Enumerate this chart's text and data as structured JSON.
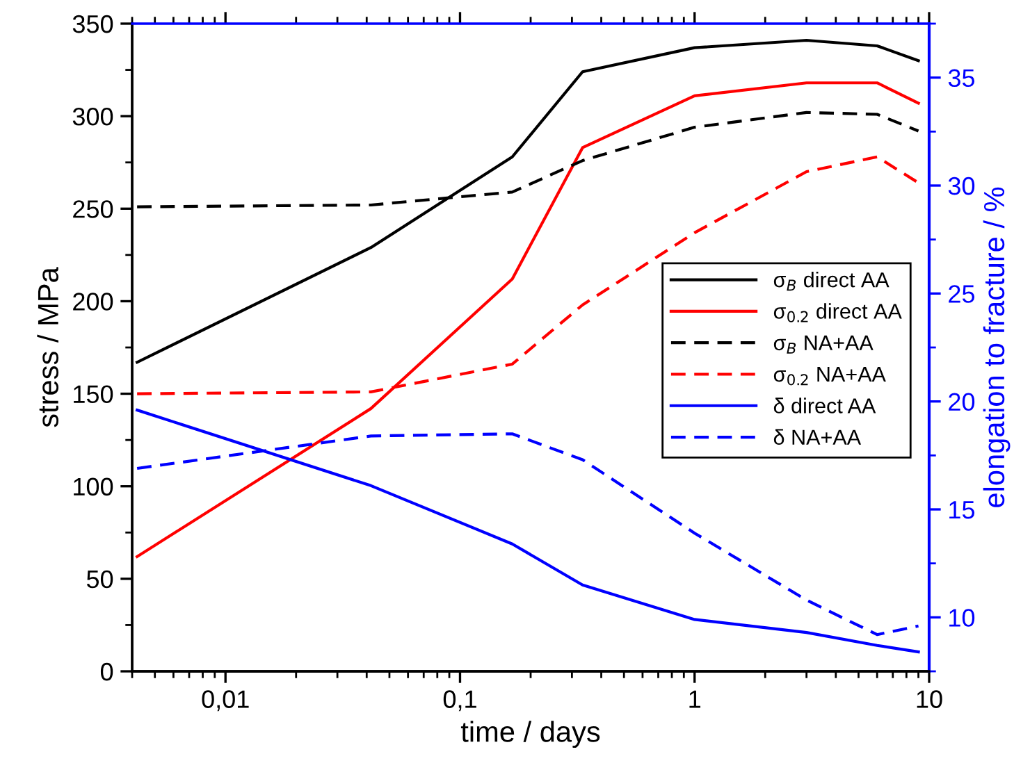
{
  "chart_data": {
    "type": "line",
    "xlabel": "time / days",
    "ylabel": "stress / MPa",
    "y2label": "elongation to fracture / %",
    "log": "x",
    "xlim": [
      0.004,
      10
    ],
    "xticks": [
      {
        "value": 0.01,
        "label": "0,01"
      },
      {
        "value": 0.1,
        "label": "0,1"
      },
      1,
      10
    ],
    "ylim": [
      0,
      350
    ],
    "yticks": [
      0,
      50,
      100,
      150,
      200,
      250,
      300,
      350
    ],
    "y2lim": [
      7.5,
      37.5
    ],
    "y2ticks": [
      10,
      15,
      20,
      25,
      30,
      35
    ],
    "grid": false,
    "legend": "right",
    "x": [
      0.0042,
      0.0417,
      0.167,
      0.333,
      1,
      3,
      6,
      9
    ],
    "series": [
      {
        "name": "σ$_{B}$ direct AA",
        "color": "#000000",
        "line_style": "solid",
        "values": [
          167,
          229,
          278,
          324,
          337,
          341,
          338,
          330
        ]
      },
      {
        "name": "σ$_{0.2}$ direct AA",
        "color": "#ff0000",
        "line_style": "solid",
        "values": [
          62,
          142,
          212,
          283,
          311,
          318,
          318,
          307
        ]
      },
      {
        "name": "σ$_{B}$ NA+AA",
        "color": "#000000",
        "line_style": "dashed",
        "values": [
          251,
          252,
          259,
          276,
          294,
          302,
          301,
          292
        ]
      },
      {
        "name": "σ$_{0.2}$ NA+AA",
        "color": "#ff0000",
        "line_style": "dashed",
        "values": [
          150,
          151,
          166,
          198,
          237,
          270,
          278,
          264
        ]
      },
      {
        "name": "δ direct AA",
        "color": "#0000ff",
        "line_style": "solid",
        "axis": "y2",
        "values": [
          19.6,
          16.1,
          13.4,
          11.5,
          9.9,
          9.3,
          8.7,
          8.4
        ]
      },
      {
        "name": "δ NA+AA",
        "color": "#0000ff",
        "line_style": "dashed",
        "axis": "y2",
        "values": [
          16.9,
          18.4,
          18.5,
          17.3,
          13.9,
          10.8,
          9.2,
          9.6
        ]
      }
    ]
  }
}
